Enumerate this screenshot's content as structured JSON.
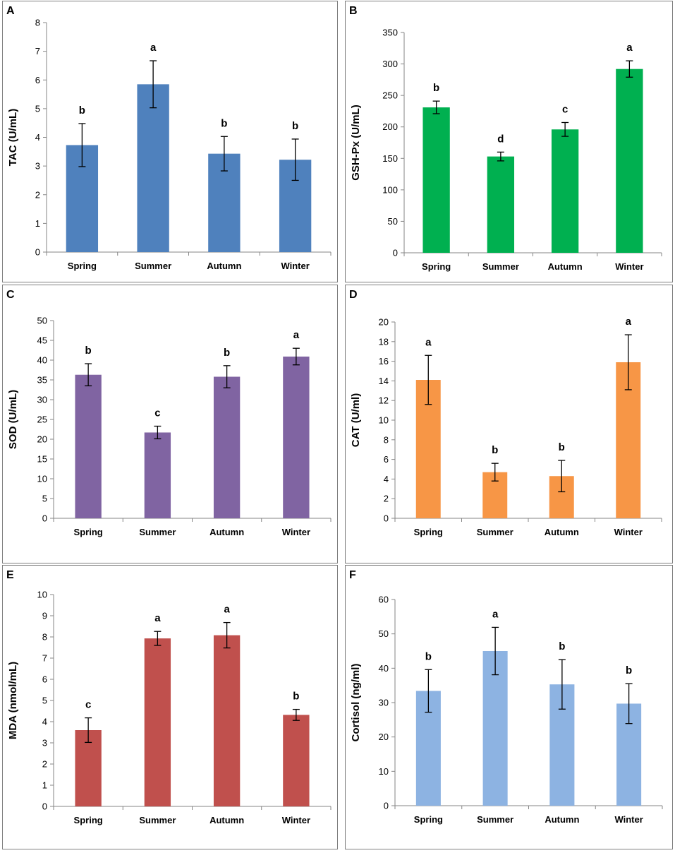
{
  "chart_data": [
    {
      "panel": "A",
      "type": "bar",
      "title": "",
      "categories": [
        "Spring",
        "Summer",
        "Autumn",
        "Winter"
      ],
      "values": [
        3.73,
        5.85,
        3.43,
        3.22
      ],
      "errors": [
        0.75,
        0.82,
        0.6,
        0.72
      ],
      "significance": [
        "b",
        "a",
        "b",
        "b"
      ],
      "ylabel": "TAC (U/mL)",
      "xlabel": "",
      "ylim": [
        0,
        8
      ],
      "ytick_step": 1,
      "ytick_labels": [
        "0",
        "1",
        "2",
        "3",
        "4",
        "5",
        "6",
        "7",
        "8"
      ],
      "color": "#4f81bd",
      "grid": false
    },
    {
      "panel": "B",
      "type": "bar",
      "title": "",
      "categories": [
        "Spring",
        "Summer",
        "Autumn",
        "Winter"
      ],
      "values": [
        231,
        153,
        196,
        292
      ],
      "errors": [
        10,
        7,
        11,
        13
      ],
      "significance": [
        "b",
        "d",
        "c",
        "a"
      ],
      "ylabel": "GSH-Px (U/mL)",
      "xlabel": "",
      "ylim": [
        0,
        350
      ],
      "ytick_step": 50,
      "ytick_labels": [
        "0",
        "50",
        "100",
        "150",
        "200",
        "250",
        "300",
        "350"
      ],
      "color": "#00b050",
      "grid": false
    },
    {
      "panel": "C",
      "type": "bar",
      "title": "",
      "categories": [
        "Spring",
        "Summer",
        "Autumn",
        "Winter"
      ],
      "values": [
        36.3,
        21.7,
        35.8,
        40.9
      ],
      "errors": [
        2.8,
        1.6,
        2.8,
        2.1
      ],
      "significance": [
        "b",
        "c",
        "b",
        "a"
      ],
      "ylabel": "SOD (U/mL)",
      "xlabel": "",
      "ylim": [
        0,
        50
      ],
      "ytick_step": 5,
      "ytick_labels": [
        "0",
        "5",
        "10",
        "15",
        "20",
        "25",
        "30",
        "35",
        "40",
        "45",
        "50"
      ],
      "color": "#8064a2",
      "grid": false
    },
    {
      "panel": "D",
      "type": "bar",
      "title": "",
      "categories": [
        "Spring",
        "Summer",
        "Autumn",
        "Winter"
      ],
      "values": [
        14.1,
        4.7,
        4.3,
        15.9
      ],
      "errors": [
        2.5,
        0.9,
        1.6,
        2.8
      ],
      "significance": [
        "a",
        "b",
        "b",
        "a"
      ],
      "ylabel": "CAT (U/ml)",
      "xlabel": "",
      "ylim": [
        0,
        20
      ],
      "ytick_step": 2,
      "ytick_labels": [
        "0",
        "2",
        "4",
        "6",
        "8",
        "10",
        "12",
        "14",
        "16",
        "18",
        "20"
      ],
      "color": "#f79646",
      "grid": false
    },
    {
      "panel": "E",
      "type": "bar",
      "title": "",
      "categories": [
        "Spring",
        "Summer",
        "Autumn",
        "Winter"
      ],
      "values": [
        3.6,
        7.93,
        8.08,
        4.32
      ],
      "errors": [
        0.58,
        0.33,
        0.6,
        0.26
      ],
      "significance": [
        "c",
        "a",
        "a",
        "b"
      ],
      "ylabel": "MDA (nmol/mL)",
      "xlabel": "",
      "ylim": [
        0,
        10
      ],
      "ytick_step": 1,
      "ytick_labels": [
        "0",
        "1",
        "2",
        "3",
        "4",
        "5",
        "6",
        "7",
        "8",
        "9",
        "10"
      ],
      "color": "#c0504d",
      "grid": false
    },
    {
      "panel": "F",
      "type": "bar",
      "title": "",
      "categories": [
        "Spring",
        "Summer",
        "Autumn",
        "Winter"
      ],
      "values": [
        33.4,
        45.0,
        35.3,
        29.7
      ],
      "errors": [
        6.2,
        6.9,
        7.2,
        5.8
      ],
      "significance": [
        "b",
        "a",
        "b",
        "b"
      ],
      "ylabel": "Cortisol (ng/ml)",
      "xlabel": "",
      "ylim": [
        0,
        60
      ],
      "ytick_step": 10,
      "ytick_labels": [
        "0",
        "10",
        "20",
        "30",
        "40",
        "50",
        "60"
      ],
      "color": "#8db3e2",
      "grid": false
    }
  ]
}
